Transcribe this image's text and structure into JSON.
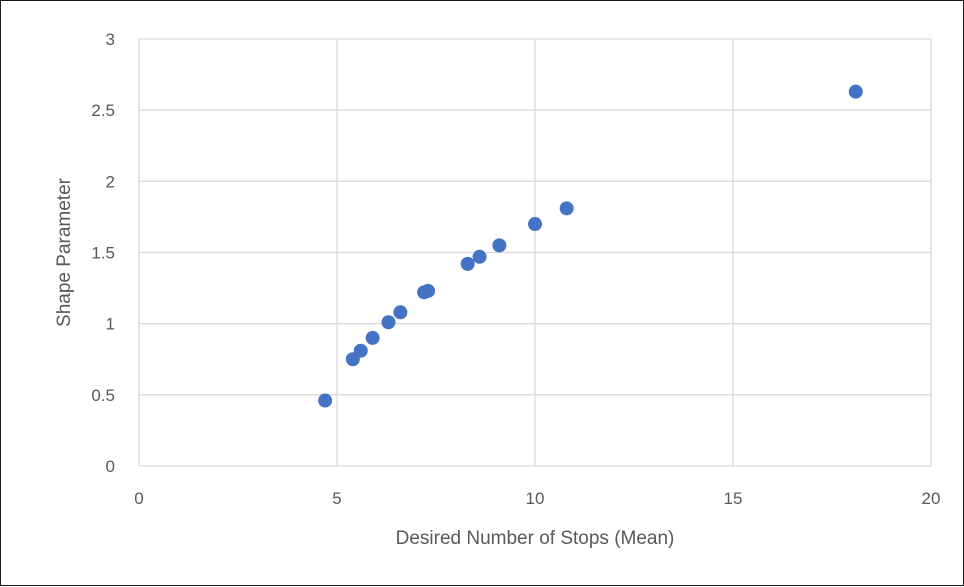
{
  "chart_data": {
    "type": "scatter",
    "title": "",
    "xlabel": "Desired Number of Stops (Mean)",
    "ylabel": "Shape Parameter",
    "xlim": [
      0,
      20
    ],
    "ylim": [
      0,
      3
    ],
    "x_ticks": [
      0,
      5,
      10,
      15,
      20
    ],
    "y_ticks": [
      0,
      0.5,
      1,
      1.5,
      2,
      2.5,
      3
    ],
    "x_tick_labels": [
      "0",
      "5",
      "10",
      "15",
      "20"
    ],
    "y_tick_labels": [
      "0",
      "0.5",
      "1",
      "1.5",
      "2",
      "2.5",
      "3"
    ],
    "grid": true,
    "legend": "none",
    "marker_color": "#4472C4",
    "series": [
      {
        "x": [
          4.7,
          5.4,
          5.6,
          5.9,
          6.3,
          6.6,
          7.2,
          7.3,
          8.3,
          8.6,
          9.1,
          10.0,
          10.8,
          18.1
        ],
        "y": [
          0.46,
          0.75,
          0.81,
          0.9,
          1.01,
          1.08,
          1.22,
          1.23,
          1.42,
          1.47,
          1.55,
          1.7,
          1.81,
          2.63
        ]
      }
    ]
  }
}
